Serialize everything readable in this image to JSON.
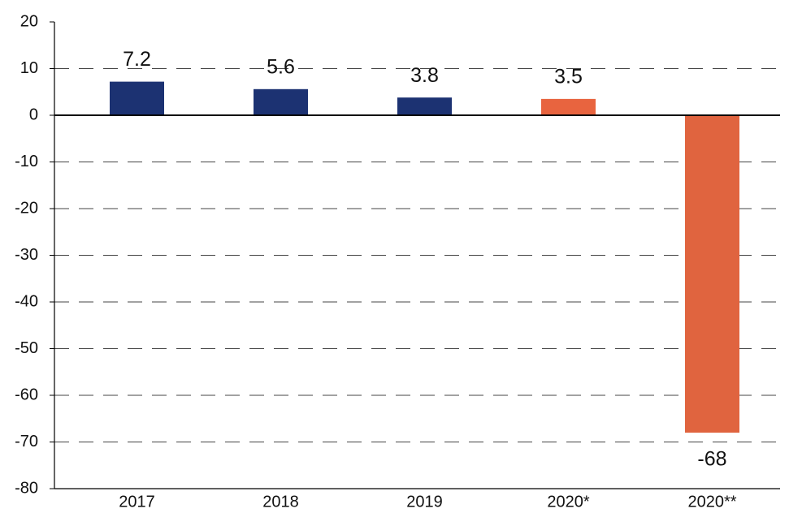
{
  "chart_data": {
    "type": "bar",
    "categories": [
      "2017",
      "2018",
      "2019",
      "2020*",
      "2020**"
    ],
    "values": [
      7.2,
      5.6,
      3.8,
      3.5,
      -68
    ],
    "colors": [
      "#1c3272",
      "#1c3272",
      "#1c3272",
      "#e8643f",
      "#e0643f"
    ],
    "ylim": [
      -80,
      20
    ],
    "yticks": [
      -80,
      -70,
      -60,
      -50,
      -40,
      -30,
      -20,
      -10,
      0,
      10,
      20
    ],
    "grid": true
  }
}
